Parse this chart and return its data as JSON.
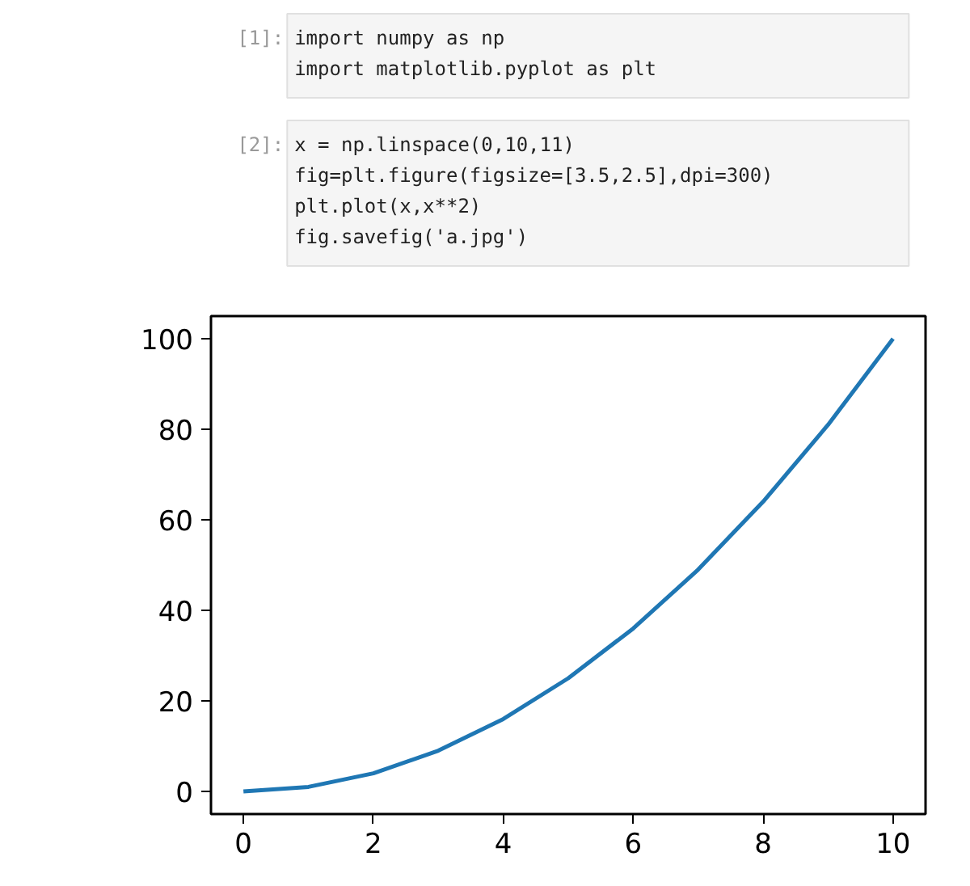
{
  "chart_data": {
    "type": "line",
    "annotations": [
      "[1]:",
      "import numpy as np\nimport matplotlib.pyplot as plt",
      "[2]:",
      "x = np.linspace(0,10,11)\nfig=plt.figure(figsize=[3.5,2.5],dpi=300)\nplt.plot(x,x**2)\nfig.savefig('a.jpg')"
    ],
    "x": [
      0,
      1,
      2,
      3,
      4,
      5,
      6,
      7,
      8,
      9,
      10
    ],
    "series": [
      {
        "color": "#1f77b4",
        "values": [
          0,
          1,
          4,
          9,
          16,
          25,
          36,
          49,
          64,
          81,
          100
        ]
      }
    ],
    "xlim": [
      -0.5,
      10.5
    ],
    "ylim": [
      -5,
      105
    ],
    "xticks": [
      0,
      2,
      4,
      6,
      8,
      10
    ],
    "yticks": [
      0,
      20,
      40,
      60,
      80,
      100
    ],
    "line_style": "solid"
  }
}
